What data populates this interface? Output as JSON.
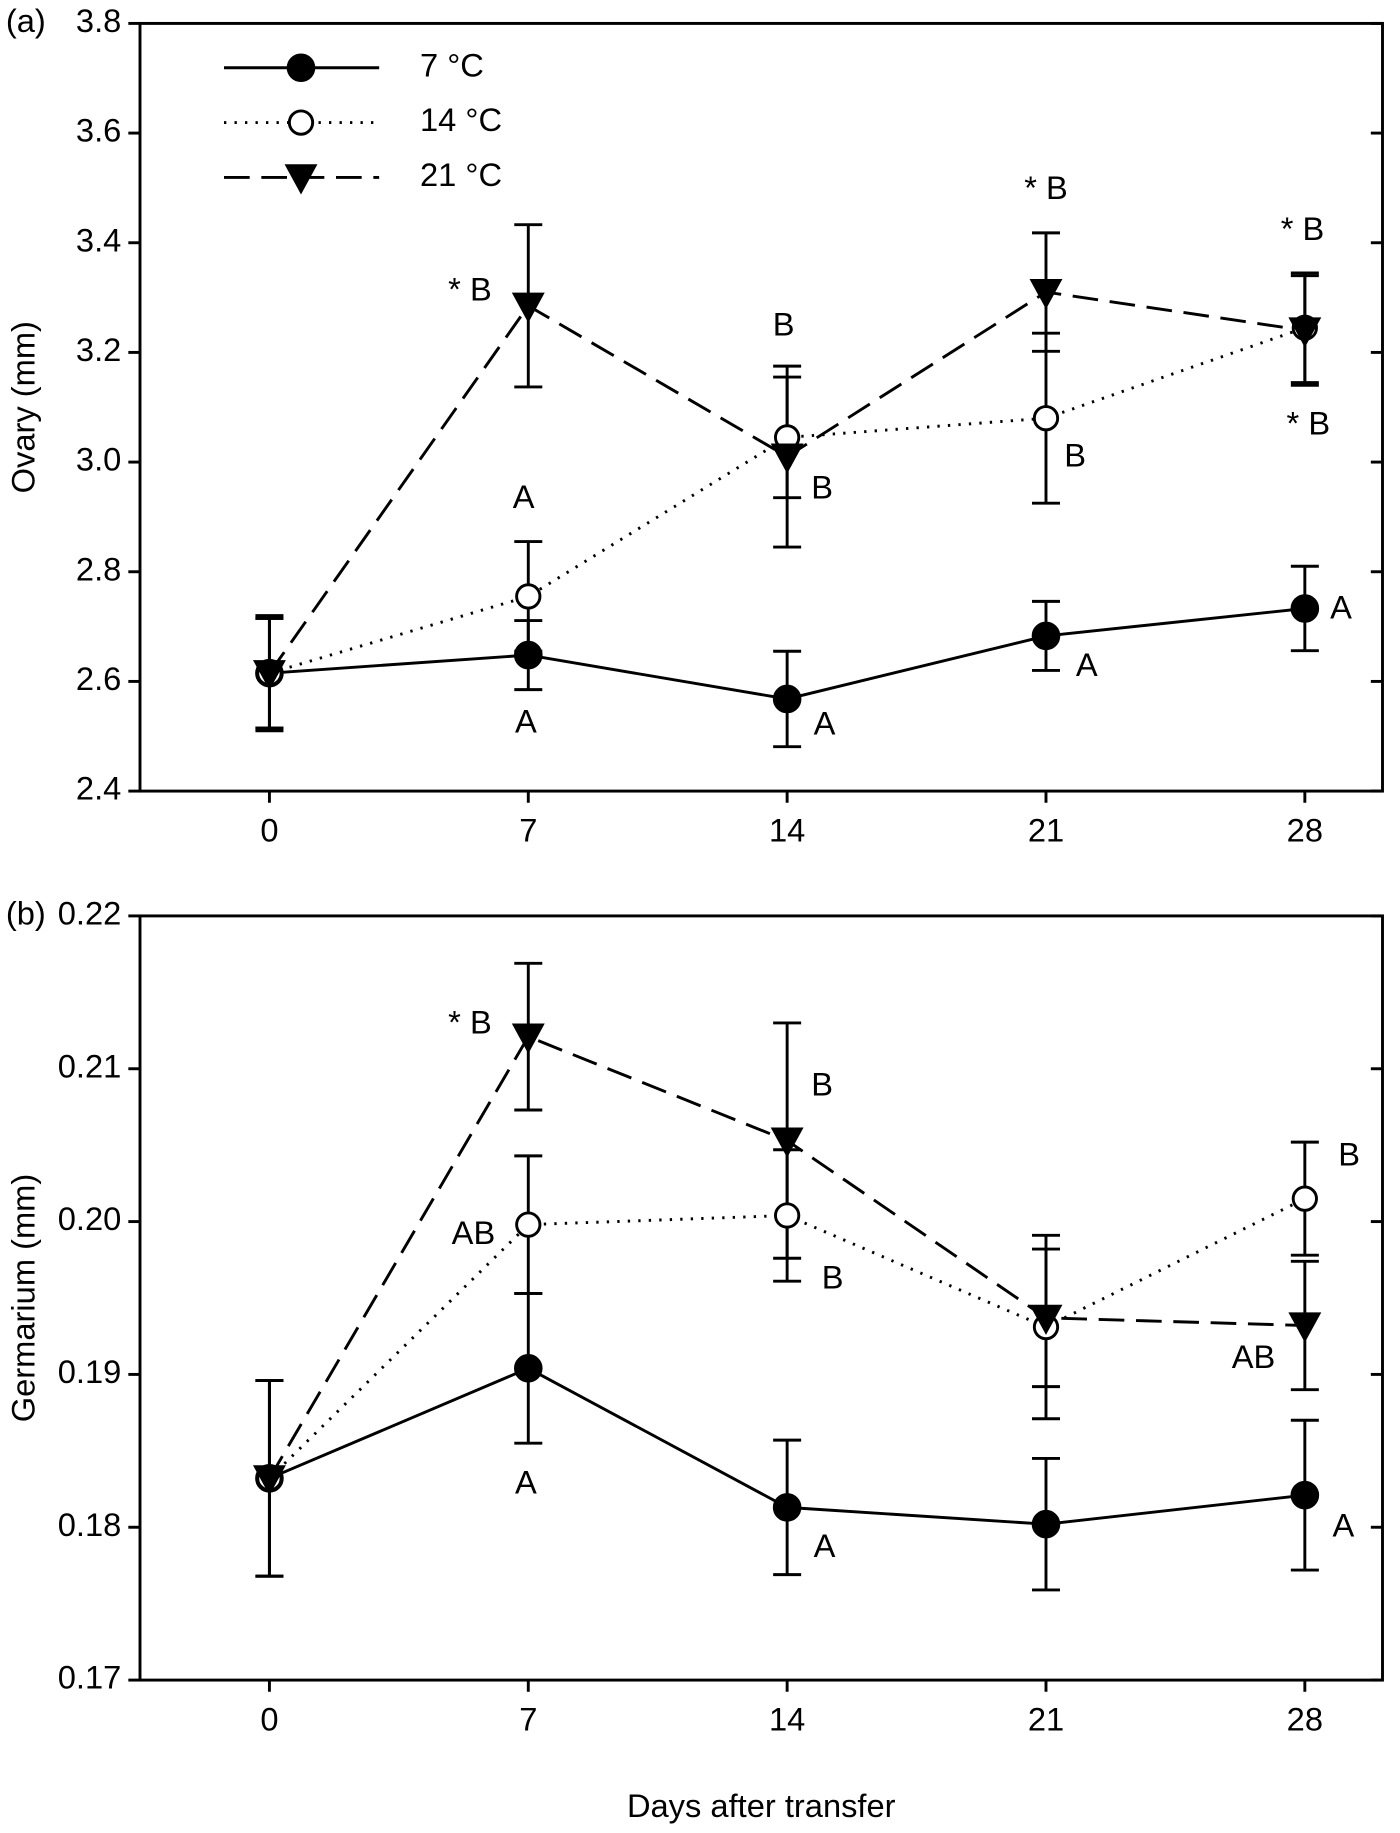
{
  "chart_data": [
    {
      "type": "line",
      "panel_label": "(a)",
      "ylabel": "Ovary (mm)",
      "x": [
        0,
        7,
        14,
        21,
        28
      ],
      "xlim": [
        -3.5,
        30.1
      ],
      "xticks": [
        0,
        7,
        14,
        21,
        28
      ],
      "ylim": [
        2.4,
        3.8
      ],
      "yticks": [
        2.4,
        2.6,
        2.8,
        {
          "value": 3.0,
          "label": "3.0"
        },
        3.2,
        3.4,
        3.6,
        3.8
      ],
      "legend": "upper left",
      "series": [
        {
          "name": "7 °C",
          "color": "#000000",
          "line_style": "solid",
          "marker": "filled-circle",
          "values": [
            2.615,
            2.648,
            2.568,
            2.683,
            2.733
          ],
          "errors": [
            0.105,
            0.063,
            0.087,
            0.063,
            0.077
          ],
          "labels": [
            null,
            "A",
            "A",
            "A",
            "A"
          ]
        },
        {
          "name": "14 °C",
          "color": "#000000",
          "line_style": "dotted",
          "marker": "open-circle",
          "values": [
            2.615,
            2.755,
            3.045,
            3.08,
            3.245
          ],
          "errors": [
            0.1,
            0.1,
            0.11,
            0.155,
            0.1
          ],
          "labels": [
            null,
            "A",
            "B",
            "B",
            "* B"
          ]
        },
        {
          "name": "21 °C",
          "color": "#000000",
          "line_style": "dashed",
          "marker": "down-triangle",
          "values": [
            2.615,
            3.285,
            3.01,
            3.31,
            3.24
          ],
          "errors": [
            0.1,
            0.148,
            0.165,
            0.108,
            0.1
          ],
          "labels": [
            null,
            "* B",
            "B",
            "* B",
            "* B"
          ]
        }
      ]
    },
    {
      "type": "line",
      "panel_label": "(b)",
      "ylabel": "Germarium (mm)",
      "xlabel": "Days after transfer",
      "x": [
        0,
        7,
        14,
        21,
        28
      ],
      "xlim": [
        -3.5,
        30.1
      ],
      "xticks": [
        0,
        7,
        14,
        21,
        28
      ],
      "ylim": [
        0.17,
        0.22
      ],
      "yticks": [
        0.17,
        0.18,
        0.19,
        {
          "value": 0.2,
          "label": "0.20"
        },
        0.21,
        0.22
      ],
      "series": [
        {
          "color": "#000000",
          "line_style": "solid",
          "marker": "filled-circle",
          "values": [
            0.1832,
            0.1904,
            0.1813,
            0.1802,
            0.1821
          ],
          "errors": [
            0.0064,
            0.0049,
            0.0044,
            0.0043,
            0.0049
          ],
          "labels": [
            null,
            "A",
            "A",
            null,
            "A"
          ]
        },
        {
          "color": "#000000",
          "line_style": "dotted",
          "marker": "open-circle",
          "values": [
            0.1832,
            0.1998,
            0.2004,
            0.1931,
            0.2015
          ],
          "errors": [
            0.0064,
            0.0045,
            0.0043,
            0.006,
            0.0037
          ],
          "labels": [
            null,
            "AB",
            "B",
            null,
            "B"
          ]
        },
        {
          "color": "#000000",
          "line_style": "dashed",
          "marker": "down-triangle",
          "values": [
            0.1832,
            0.2121,
            0.2053,
            0.1937,
            0.1932
          ],
          "errors": [
            0.0064,
            0.0048,
            0.0077,
            0.0045,
            0.0042
          ],
          "labels": [
            null,
            "* B",
            "B",
            null,
            "AB"
          ]
        }
      ]
    }
  ]
}
